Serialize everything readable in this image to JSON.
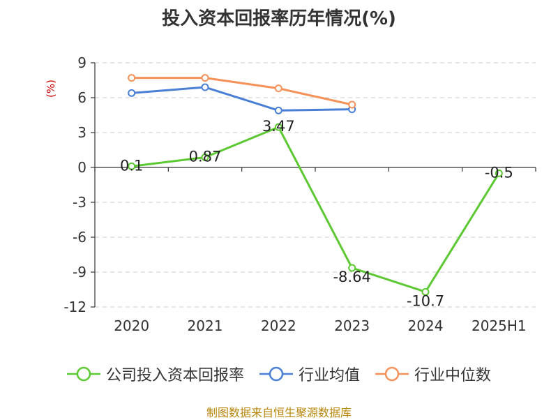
{
  "chart_data": {
    "type": "line",
    "title": "投入资本回报率历年情况(%)",
    "ylabel": "(%)",
    "xlabel": "",
    "categories": [
      "2020",
      "2021",
      "2022",
      "2023",
      "2024",
      "2025H1"
    ],
    "ylim": [
      -12,
      9
    ],
    "yticks": [
      9,
      6,
      3,
      0,
      -3,
      -6,
      -9,
      -12
    ],
    "grid": true,
    "legend_position": "bottom",
    "series": [
      {
        "name": "公司投入资本回报率",
        "color": "#5cc832",
        "values": [
          0.1,
          0.87,
          3.47,
          -8.64,
          -10.7,
          -0.5
        ],
        "labels": [
          "0.1",
          "0.87",
          "3.47",
          "-8.64",
          "-10.7",
          "-0.5"
        ]
      },
      {
        "name": "行业均值",
        "color": "#4a7fd6",
        "values": [
          6.4,
          6.9,
          4.9,
          5.0,
          null,
          null
        ]
      },
      {
        "name": "行业中位数",
        "color": "#f59259",
        "values": [
          7.7,
          7.7,
          6.8,
          5.4,
          null,
          null
        ]
      }
    ]
  },
  "source_text": "制图数据来自恒生聚源数据库"
}
